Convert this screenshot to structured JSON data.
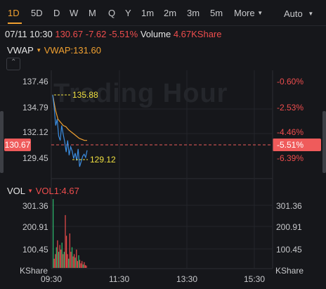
{
  "periods": [
    {
      "label": "1D",
      "active": true
    },
    {
      "label": "5D"
    },
    {
      "label": "D"
    },
    {
      "label": "W"
    },
    {
      "label": "M"
    },
    {
      "label": "Q"
    },
    {
      "label": "Y"
    },
    {
      "label": "1m"
    },
    {
      "label": "2m"
    },
    {
      "label": "3m"
    },
    {
      "label": "5m"
    }
  ],
  "more_label": "More",
  "auto_label": "Auto",
  "info": {
    "datetime": "07/11 10:30",
    "price": "130.67",
    "change": "-7.62",
    "change_pct": "-5.51%",
    "volume_label": "Volume",
    "volume_value": "4.67KShare"
  },
  "vwap": {
    "name": "VWAP",
    "value_label": "VWAP:131.60"
  },
  "watermark": "Trading Hour",
  "price_axis_left": [
    "137.46",
    "134.79",
    "132.12",
    "129.45"
  ],
  "price_axis_right": [
    "-0.60%",
    "-2.53%",
    "-4.46%",
    "-6.39%"
  ],
  "current_price": "130.67",
  "current_pct": "-5.51%",
  "high_marker": "135.88",
  "low_marker": "129.12",
  "vol": {
    "name": "VOL",
    "value_label": "VOL1:4.67",
    "axis_left": [
      "301.36",
      "200.91",
      "100.45",
      "KShare"
    ],
    "axis_right": [
      "301.36",
      "200.91",
      "100.45",
      "KShare"
    ]
  },
  "time_axis": [
    "09:30",
    "11:30",
    "13:30",
    "15:30"
  ],
  "colors": {
    "accent": "#f0a030",
    "down": "#ee4d4d",
    "up": "#2fbf71",
    "price_line": "#3b8de0",
    "vwap_line": "#f0a030",
    "background": "#16171b"
  },
  "chart_data": {
    "type": "line",
    "title": "",
    "xlabel": "",
    "ylabel": "",
    "x_ticks": [
      "09:30",
      "11:30",
      "13:30",
      "15:30"
    ],
    "ylim": [
      128.6,
      138.2
    ],
    "series": [
      {
        "name": "VWAP",
        "values": [
          135.9,
          134.5,
          133.6,
          133.3,
          133.0,
          132.9,
          132.6,
          132.4,
          132.2,
          132.0,
          131.8,
          131.7,
          131.6,
          131.6
        ]
      },
      {
        "name": "",
        "values": [
          135.88,
          134.7,
          133.0,
          133.6,
          132.0,
          131.6,
          133.0,
          132.2,
          131.5,
          130.5,
          131.6,
          130.2,
          131.0,
          130.6,
          129.9,
          130.4,
          129.7,
          130.8,
          129.12,
          129.6,
          130.1,
          130.3,
          130.0,
          130.67
        ]
      }
    ],
    "volume": {
      "name": "VOL",
      "ylim": [
        0,
        340
      ],
      "values": [
        300,
        40,
        60,
        90,
        120,
        70,
        100,
        80,
        110,
        60,
        70,
        230,
        140,
        60,
        40,
        150,
        70,
        90,
        50,
        60,
        45,
        80,
        30,
        55,
        35,
        20,
        30,
        15,
        25,
        12,
        10
      ],
      "direction": [
        1,
        0,
        0,
        1,
        0,
        1,
        0,
        0,
        1,
        0,
        1,
        0,
        0,
        0,
        1,
        0,
        0,
        1,
        0,
        0,
        1,
        0,
        0,
        1,
        0,
        0,
        0,
        1,
        0,
        0,
        0
      ]
    }
  }
}
